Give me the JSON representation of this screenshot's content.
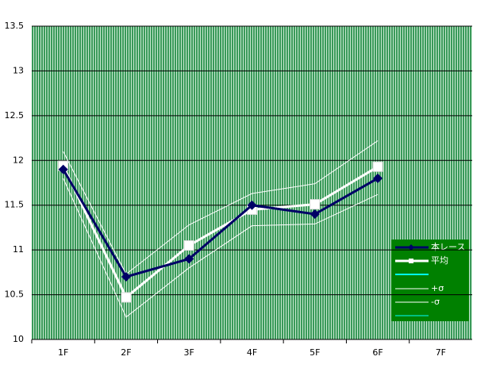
{
  "chart_data": {
    "type": "line",
    "categories": [
      "1F",
      "2F",
      "3F",
      "4F",
      "5F",
      "6F",
      "7F"
    ],
    "series": [
      {
        "name": "本レース",
        "color": "#000066",
        "marker": "diamond",
        "width": 3,
        "values": [
          11.9,
          10.7,
          10.9,
          11.5,
          11.4,
          11.8,
          null
        ]
      },
      {
        "name": "平均",
        "color": "#ffffff",
        "marker": "square",
        "width": 3,
        "values": [
          11.94,
          10.47,
          11.05,
          11.45,
          11.51,
          11.93,
          null
        ]
      },
      {
        "name": "+σ",
        "color": "#ffffff",
        "marker": "none",
        "width": 1,
        "values": [
          12.1,
          10.73,
          11.28,
          11.63,
          11.74,
          12.22,
          null
        ]
      },
      {
        "name": "-σ",
        "color": "#ffffff",
        "marker": "none",
        "width": 1,
        "values": [
          11.8,
          10.25,
          10.8,
          11.27,
          11.29,
          11.62,
          null
        ]
      }
    ],
    "ylim": [
      10,
      13.5
    ],
    "yticks": [
      10,
      10.5,
      11,
      11.5,
      12,
      12.5,
      13,
      13.5
    ],
    "grid": true
  }
}
